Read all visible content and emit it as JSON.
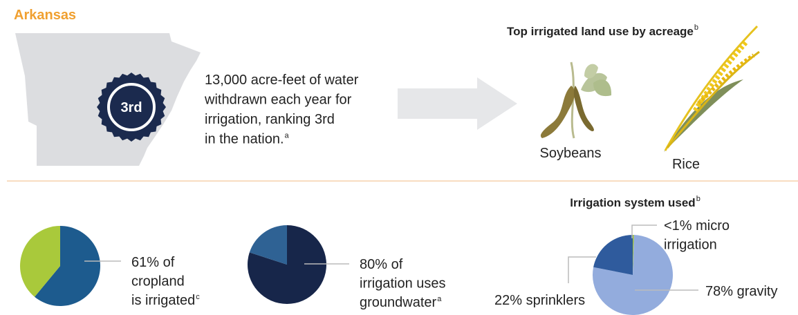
{
  "header": {
    "title": "Arkansas"
  },
  "ranking": {
    "badge": "3rd",
    "lines": [
      "13,000 acre-feet of water",
      "withdrawn each year for",
      "irrigation, ranking 3rd",
      "in the nation."
    ],
    "note": "a"
  },
  "land_use": {
    "title": "Top irrigated land use by acreage",
    "note": "b",
    "crops": [
      "Soybeans",
      "Rice"
    ]
  },
  "chart_data": [
    {
      "type": "pie",
      "values": [
        61,
        39
      ],
      "colors": [
        "#1d5b8e",
        "#a9c93b"
      ],
      "labels": [
        [
          "61% of",
          "cropland",
          "is irrigated"
        ],
        null
      ],
      "notes": [
        "c",
        null
      ]
    },
    {
      "type": "pie",
      "values": [
        80,
        20
      ],
      "colors": [
        "#17264a",
        "#2f6294"
      ],
      "labels": [
        [
          "80% of",
          "irrigation uses",
          "groundwater"
        ],
        null
      ],
      "notes": [
        "a",
        null
      ]
    },
    {
      "type": "pie",
      "title": "Irrigation system used",
      "title_note": "b",
      "values": [
        0.5,
        78,
        22
      ],
      "colors": [
        "#9cbf3b",
        "#93acdd",
        "#2f5b9d"
      ],
      "labels": [
        [
          "<1% micro",
          "irrigation"
        ],
        [
          "78% gravity"
        ],
        [
          "22% sprinklers"
        ]
      ],
      "notes": [
        null,
        null,
        null
      ]
    }
  ]
}
